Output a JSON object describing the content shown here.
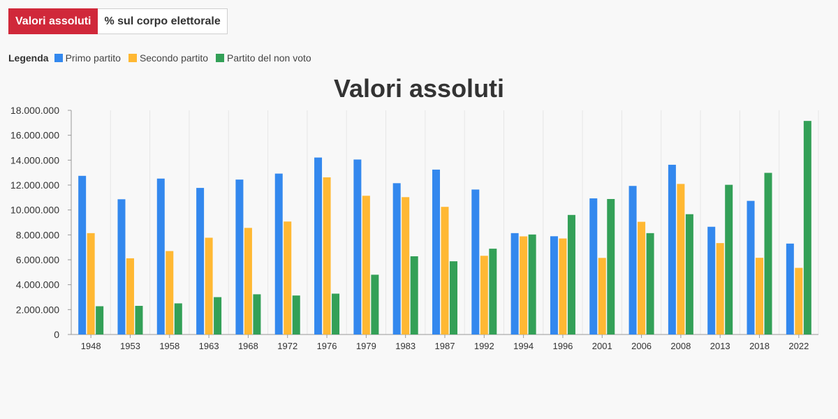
{
  "tabs": [
    {
      "label": "Valori assoluti",
      "active": true
    },
    {
      "label": "% sul corpo elettorale",
      "active": false
    }
  ],
  "legend_title": "Legenda",
  "colors": {
    "primo": "#3388ee",
    "secondo": "#ffb833",
    "nonvoto": "#33a057",
    "accent": "#d0283a"
  },
  "chart_data": {
    "type": "bar",
    "title": "Valori assoluti",
    "categories": [
      "1948",
      "1953",
      "1958",
      "1963",
      "1968",
      "1972",
      "1976",
      "1979",
      "1983",
      "1987",
      "1992",
      "1994",
      "1996",
      "2001",
      "2006",
      "2008",
      "2013",
      "2018",
      "2022"
    ],
    "series": [
      {
        "name": "Primo partito",
        "color": "#3388ee",
        "values": [
          12740000,
          10860000,
          12520000,
          11770000,
          12440000,
          12920000,
          14210000,
          14050000,
          12150000,
          13240000,
          11640000,
          8140000,
          7890000,
          10930000,
          11930000,
          13630000,
          8650000,
          10730000,
          7300000
        ]
      },
      {
        "name": "Secondo partito",
        "color": "#ffb833",
        "values": [
          8140000,
          6120000,
          6700000,
          7770000,
          8560000,
          9070000,
          12620000,
          11140000,
          11030000,
          10250000,
          6320000,
          7880000,
          7710000,
          6150000,
          9050000,
          12090000,
          7340000,
          6160000,
          5350000
        ]
      },
      {
        "name": "Partito del non voto",
        "color": "#33a057",
        "values": [
          2270000,
          2300000,
          2500000,
          3000000,
          3230000,
          3130000,
          3280000,
          4800000,
          6280000,
          5880000,
          6890000,
          8030000,
          9600000,
          10880000,
          8140000,
          9660000,
          12020000,
          12980000,
          17150000
        ]
      }
    ],
    "ylim": [
      0,
      18000000
    ],
    "yticks": [
      0,
      2000000,
      4000000,
      6000000,
      8000000,
      10000000,
      12000000,
      14000000,
      16000000,
      18000000
    ],
    "ytick_labels": [
      "0",
      "2.000.000",
      "4.000.000",
      "6.000.000",
      "8.000.000",
      "10.000.000",
      "12.000.000",
      "14.000.000",
      "16.000.000",
      "18.000.000"
    ],
    "grid": "vertical",
    "legend_position": "top-left"
  }
}
